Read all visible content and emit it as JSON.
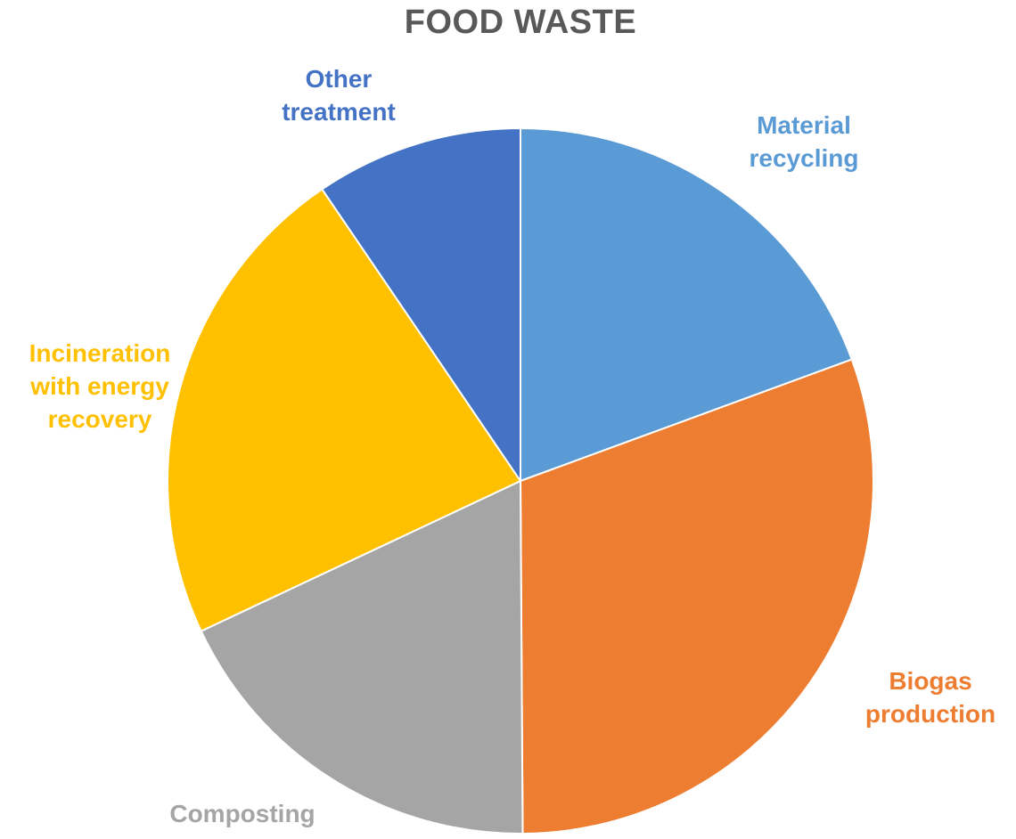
{
  "chart_data": {
    "type": "pie",
    "title": "FOOD WASTE",
    "slices": [
      {
        "label": [
          "Material",
          "recycling"
        ],
        "value": 19.4,
        "color": "#5B9BD5"
      },
      {
        "label": [
          "Biogas",
          "production"
        ],
        "value": 30.5,
        "color": "#ED7D31"
      },
      {
        "label": [
          "Composting"
        ],
        "value": 18.1,
        "color": "#A5A5A5"
      },
      {
        "label": [
          "Incineration",
          "with energy",
          "recovery"
        ],
        "value": 22.5,
        "color": "#FFC000"
      },
      {
        "label": [
          "Other",
          "treatment"
        ],
        "value": 9.5,
        "color": "#4472C4"
      }
    ],
    "start_angle_deg": 0,
    "direction": "clockwise",
    "legend": "none",
    "data_labels": "category names outside slices"
  }
}
